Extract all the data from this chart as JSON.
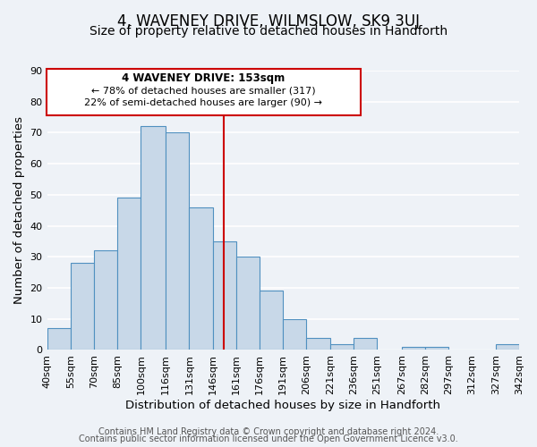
{
  "title": "4, WAVENEY DRIVE, WILMSLOW, SK9 3UJ",
  "subtitle": "Size of property relative to detached houses in Handforth",
  "xlabel": "Distribution of detached houses by size in Handforth",
  "ylabel": "Number of detached properties",
  "bar_values": [
    7,
    28,
    32,
    49,
    72,
    70,
    46,
    35,
    30,
    19,
    10,
    4,
    2,
    4,
    0,
    1,
    1,
    0,
    0,
    2
  ],
  "bin_edges": [
    40,
    55,
    70,
    85,
    100,
    116,
    131,
    146,
    161,
    176,
    191,
    206,
    221,
    236,
    251,
    267,
    282,
    297,
    312,
    327,
    342
  ],
  "bar_color": "#c8d8e8",
  "bar_edge_color": "#5090c0",
  "vline_x": 153,
  "vline_color": "#cc0000",
  "ylim": [
    0,
    90
  ],
  "yticks": [
    0,
    10,
    20,
    30,
    40,
    50,
    60,
    70,
    80,
    90
  ],
  "xtick_labels": [
    "40sqm",
    "55sqm",
    "70sqm",
    "85sqm",
    "100sqm",
    "116sqm",
    "131sqm",
    "146sqm",
    "161sqm",
    "176sqm",
    "191sqm",
    "206sqm",
    "221sqm",
    "236sqm",
    "251sqm",
    "267sqm",
    "282sqm",
    "297sqm",
    "312sqm",
    "327sqm",
    "342sqm"
  ],
  "annotation_title": "4 WAVENEY DRIVE: 153sqm",
  "annotation_line1": "← 78% of detached houses are smaller (317)",
  "annotation_line2": "22% of semi-detached houses are larger (90) →",
  "annotation_box_color": "#ffffff",
  "annotation_box_edge": "#cc0000",
  "footer_line1": "Contains HM Land Registry data © Crown copyright and database right 2024.",
  "footer_line2": "Contains public sector information licensed under the Open Government Licence v3.0.",
  "background_color": "#eef2f7",
  "plot_bg_color": "#eef2f7",
  "title_fontsize": 12,
  "subtitle_fontsize": 10,
  "axis_label_fontsize": 9.5,
  "tick_fontsize": 8,
  "footer_fontsize": 7
}
